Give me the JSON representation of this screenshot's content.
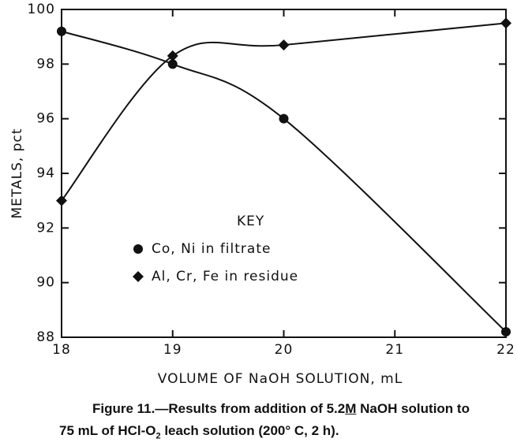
{
  "chart_data": {
    "type": "line",
    "x": [
      18,
      19,
      20,
      22
    ],
    "series": [
      {
        "name": "Co, Ni in filtrate",
        "color": "#111111",
        "marker": "circle",
        "values": [
          99.2,
          98.0,
          96.0,
          88.2
        ]
      },
      {
        "name": "Al, Cr, Fe in residue",
        "color": "#111111",
        "marker": "diamond",
        "values": [
          93.0,
          98.3,
          98.7,
          99.5
        ]
      }
    ],
    "xlim": [
      18,
      22
    ],
    "xticks": [
      18,
      19,
      20,
      21,
      22
    ],
    "ylim": [
      88,
      100
    ],
    "yticks": [
      88,
      90,
      92,
      94,
      96,
      98,
      100
    ],
    "xlabel": "VOLUME OF NaOH SOLUTION, mL",
    "ylabel": "METALS, pct",
    "legend_title": "KEY",
    "caption": [
      "Figure 11.—Results from addition of 5.2",
      "M",
      " NaOH solution to",
      "75 mL of HCl-O",
      "2",
      " leach solution (200° C, 2 h)."
    ]
  }
}
